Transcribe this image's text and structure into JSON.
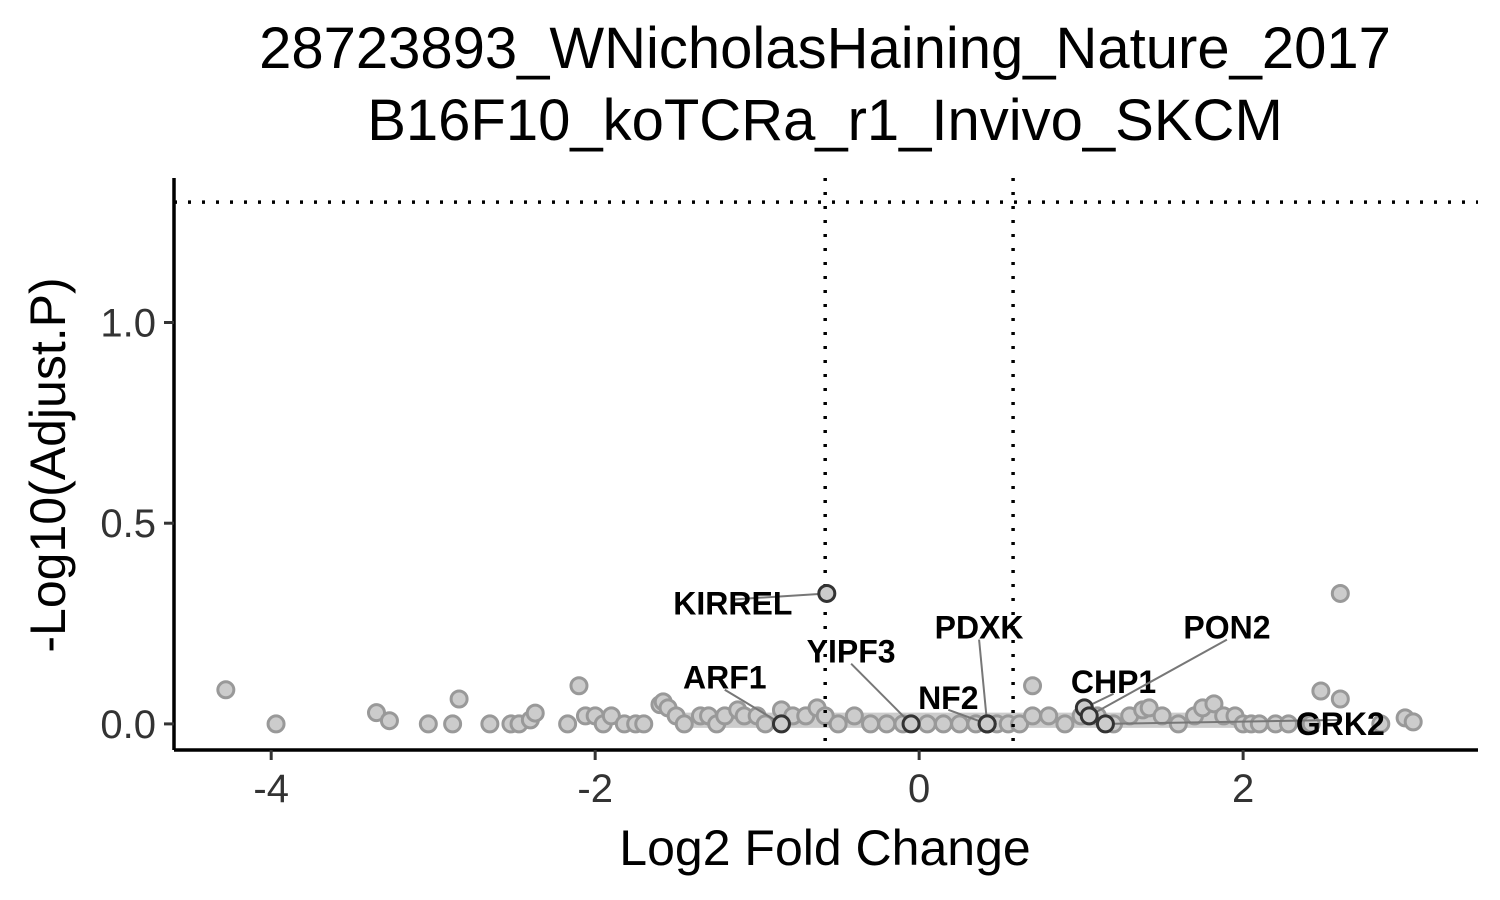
{
  "chart_data": {
    "type": "scatter",
    "title": [
      "28723893_WNicholasHaining_Nature_2017",
      "B16F10_koTCRa_r1_Invivo_SKCM"
    ],
    "xlabel": "Log2 Fold Change",
    "ylabel": "-Log10(Adjust.P)",
    "xlim": [
      -4.6,
      3.45
    ],
    "ylim": [
      -0.065,
      1.36
    ],
    "x_ticks": [
      {
        "value": -4,
        "label": "-4"
      },
      {
        "value": -2,
        "label": "-2"
      },
      {
        "value": 0,
        "label": "0"
      },
      {
        "value": 2,
        "label": "2"
      }
    ],
    "y_ticks": [
      {
        "value": 0.0,
        "label": "0.0"
      },
      {
        "value": 0.5,
        "label": "0.5"
      },
      {
        "value": 1.0,
        "label": "1.0"
      }
    ],
    "thresholds": {
      "x": [
        -0.58,
        0.58
      ],
      "y": 1.3
    },
    "grid": false,
    "colors": {
      "point_fill": "#cccccc",
      "point_stroke": "#999999",
      "highlight_stroke": "#333333",
      "threshold": "#000000"
    },
    "points": [
      [
        -4.28,
        0.085
      ],
      [
        -3.97,
        0.0
      ],
      [
        -3.35,
        0.028
      ],
      [
        -3.27,
        0.008
      ],
      [
        -3.03,
        0.0
      ],
      [
        -2.88,
        0.0
      ],
      [
        -2.84,
        0.062
      ],
      [
        -2.65,
        0.0
      ],
      [
        -2.52,
        0.0
      ],
      [
        -2.47,
        0.0
      ],
      [
        -2.4,
        0.01
      ],
      [
        -2.37,
        0.027
      ],
      [
        -2.17,
        0.0
      ],
      [
        -2.1,
        0.095
      ],
      [
        -2.06,
        0.02
      ],
      [
        -2.0,
        0.02
      ],
      [
        -1.95,
        0.0
      ],
      [
        -1.9,
        0.02
      ],
      [
        -1.82,
        0.0
      ],
      [
        -1.75,
        0.0
      ],
      [
        -1.7,
        0.0
      ],
      [
        -1.6,
        0.048
      ],
      [
        -1.58,
        0.055
      ],
      [
        -1.55,
        0.04
      ],
      [
        -1.5,
        0.02
      ],
      [
        -1.45,
        0.0
      ],
      [
        -1.35,
        0.02
      ],
      [
        -1.3,
        0.02
      ],
      [
        -1.25,
        0.0
      ],
      [
        -1.2,
        0.02
      ],
      [
        -1.12,
        0.035
      ],
      [
        -1.08,
        0.02
      ],
      [
        -1.0,
        0.02
      ],
      [
        -0.95,
        0.0
      ],
      [
        -0.85,
        0.035
      ],
      [
        -0.78,
        0.02
      ],
      [
        -0.7,
        0.02
      ],
      [
        -0.63,
        0.04
      ],
      [
        -0.58,
        0.02
      ],
      [
        -0.5,
        0.0
      ],
      [
        -0.4,
        0.02
      ],
      [
        -0.3,
        0.0
      ],
      [
        -0.2,
        0.0
      ],
      [
        -0.1,
        0.0
      ],
      [
        0.05,
        0.0
      ],
      [
        0.15,
        0.0
      ],
      [
        0.25,
        0.0
      ],
      [
        0.35,
        0.0
      ],
      [
        0.48,
        0.0
      ],
      [
        0.55,
        0.0
      ],
      [
        0.62,
        0.0
      ],
      [
        0.7,
        0.02
      ],
      [
        0.7,
        0.095
      ],
      [
        0.8,
        0.02
      ],
      [
        0.9,
        0.0
      ],
      [
        1.0,
        0.02
      ],
      [
        1.1,
        0.02
      ],
      [
        1.2,
        0.0
      ],
      [
        1.3,
        0.02
      ],
      [
        1.38,
        0.035
      ],
      [
        1.42,
        0.04
      ],
      [
        1.5,
        0.02
      ],
      [
        1.6,
        0.0
      ],
      [
        1.7,
        0.02
      ],
      [
        1.75,
        0.04
      ],
      [
        1.82,
        0.05
      ],
      [
        1.88,
        0.02
      ],
      [
        1.95,
        0.02
      ],
      [
        2.0,
        0.0
      ],
      [
        2.05,
        0.0
      ],
      [
        2.1,
        0.0
      ],
      [
        2.2,
        0.0
      ],
      [
        2.28,
        0.0
      ],
      [
        2.42,
        0.0
      ],
      [
        2.48,
        0.082
      ],
      [
        2.6,
        0.062
      ],
      [
        2.6,
        0.325
      ],
      [
        2.85,
        0.0
      ],
      [
        3.0,
        0.015
      ],
      [
        3.05,
        0.005
      ]
    ],
    "labeled_genes": [
      {
        "name": "KIRREL",
        "x": -0.57,
        "y": 0.325,
        "label_x": -1.15,
        "label_y": 0.3
      },
      {
        "name": "ARF1",
        "x": -0.85,
        "y": 0.0,
        "label_x": -1.2,
        "label_y": 0.115
      },
      {
        "name": "YIPF3",
        "x": -0.05,
        "y": 0.0,
        "label_x": -0.42,
        "label_y": 0.18
      },
      {
        "name": "NF2",
        "x": 0.42,
        "y": 0.0,
        "label_x": 0.18,
        "label_y": 0.065
      },
      {
        "name": "PDXK",
        "x": 0.42,
        "y": 0.0,
        "label_x": 0.37,
        "label_y": 0.24
      },
      {
        "name": "CHP1",
        "x": 1.02,
        "y": 0.04,
        "label_x": 1.2,
        "label_y": 0.105
      },
      {
        "name": "PON2",
        "x": 1.05,
        "y": 0.02,
        "label_x": 1.9,
        "label_y": 0.24
      },
      {
        "name": "GRK2",
        "x": 1.15,
        "y": 0.0,
        "label_x": 2.6,
        "label_y": 0.0
      }
    ]
  }
}
